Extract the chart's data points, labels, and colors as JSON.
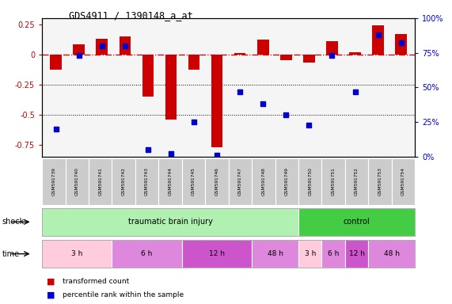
{
  "title": "GDS4911 / 1390148_a_at",
  "samples": [
    "GSM591739",
    "GSM591740",
    "GSM591741",
    "GSM591742",
    "GSM591743",
    "GSM591744",
    "GSM591745",
    "GSM591746",
    "GSM591747",
    "GSM591748",
    "GSM591749",
    "GSM591750",
    "GSM591751",
    "GSM591752",
    "GSM591753",
    "GSM591754"
  ],
  "red_values": [
    -0.13,
    0.08,
    0.13,
    0.15,
    -0.35,
    -0.54,
    -0.13,
    -0.77,
    0.01,
    0.12,
    -0.05,
    -0.07,
    0.11,
    0.02,
    0.24,
    0.17
  ],
  "blue_values_pct": [
    20,
    73,
    80,
    80,
    5,
    2,
    25,
    1,
    47,
    38,
    30,
    23,
    73,
    47,
    88,
    82
  ],
  "shock_groups": [
    {
      "label": "traumatic brain injury",
      "start": 0,
      "end": 11,
      "color": "#b0f0b0"
    },
    {
      "label": "control",
      "start": 11,
      "end": 16,
      "color": "#44cc44"
    }
  ],
  "time_groups": [
    {
      "label": "3 h",
      "start": 0,
      "end": 3,
      "color": "#ffccdd"
    },
    {
      "label": "6 h",
      "start": 3,
      "end": 6,
      "color": "#dd88dd"
    },
    {
      "label": "12 h",
      "start": 6,
      "end": 9,
      "color": "#cc55cc"
    },
    {
      "label": "48 h",
      "start": 9,
      "end": 11,
      "color": "#dd88dd"
    },
    {
      "label": "3 h",
      "start": 11,
      "end": 12,
      "color": "#ffccdd"
    },
    {
      "label": "6 h",
      "start": 12,
      "end": 13,
      "color": "#dd88dd"
    },
    {
      "label": "12 h",
      "start": 13,
      "end": 14,
      "color": "#cc55cc"
    },
    {
      "label": "48 h",
      "start": 14,
      "end": 16,
      "color": "#dd88dd"
    }
  ],
  "ylim_left": [
    -0.85,
    0.3
  ],
  "ylim_right": [
    0,
    100
  ],
  "red_color": "#cc0000",
  "blue_color": "#0000cc",
  "hline_color": "#cc0000",
  "dotline_color": "#000000",
  "bar_width": 0.5,
  "shock_label": "shock",
  "time_label": "time",
  "legend_red": "transformed count",
  "legend_blue": "percentile rank within the sample",
  "left_yticks": [
    -0.75,
    -0.5,
    -0.25,
    0,
    0.25
  ],
  "left_yticklabels": [
    "-0.75",
    "-0.5",
    "-0.25",
    "0",
    "0.25"
  ],
  "right_yticks": [
    0,
    25,
    50,
    75,
    100
  ],
  "right_yticklabels": [
    "0%",
    "25%",
    "50%",
    "75%",
    "100%"
  ],
  "sample_box_color": "#cccccc",
  "plot_bg_color": "#f5f5f5"
}
